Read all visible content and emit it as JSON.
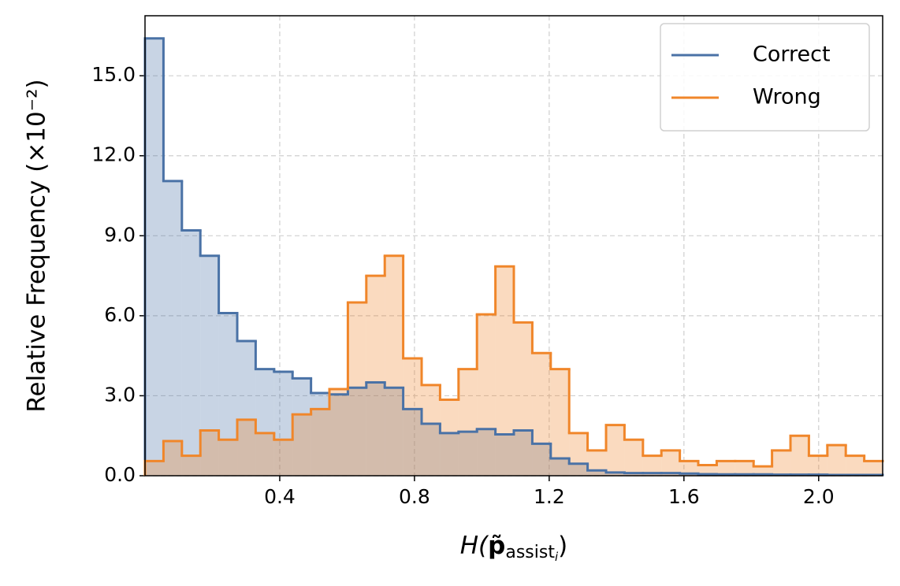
{
  "chart_data": {
    "type": "histogram",
    "histtype": "step-filled",
    "y_label": "Relative Frequency (×10⁻²)",
    "x_label": [
      "H(",
      "p̃",
      "assist",
      "i",
      ")"
    ],
    "bins": [
      0,
      0.0548,
      0.1095,
      0.1643,
      0.219,
      0.2738,
      0.3285,
      0.3833,
      0.438,
      0.4928,
      0.5475,
      0.6023,
      0.657,
      0.7118,
      0.7665,
      0.8213,
      0.876,
      0.9308,
      0.9855,
      1.0403,
      1.095,
      1.1498,
      1.2045,
      1.2593,
      1.314,
      1.3688,
      1.4235,
      1.4783,
      1.533,
      1.5878,
      1.6425,
      1.6973,
      1.752,
      1.8068,
      1.8615,
      1.9163,
      1.971,
      2.0258,
      2.0805,
      2.1353,
      2.19
    ],
    "series": [
      {
        "name": "Correct",
        "color": "#4a72a6",
        "fill_opacity": 0.3,
        "values": [
          16.4,
          11.05,
          9.2,
          8.25,
          6.1,
          5.05,
          4.0,
          3.9,
          3.65,
          3.1,
          3.05,
          3.3,
          3.5,
          3.3,
          2.5,
          1.95,
          1.6,
          1.65,
          1.75,
          1.55,
          1.7,
          1.2,
          0.65,
          0.45,
          0.2,
          0.12,
          0.1,
          0.1,
          0.1,
          0.08,
          0.06,
          0.05,
          0.05,
          0.05,
          0.04,
          0.04,
          0.04,
          0.03,
          0.03,
          0.03
        ]
      },
      {
        "name": "Wrong",
        "color": "#f0862a",
        "fill_opacity": 0.3,
        "values": [
          0.55,
          1.3,
          0.75,
          1.7,
          1.35,
          2.1,
          1.6,
          1.35,
          2.3,
          2.5,
          3.25,
          6.5,
          7.5,
          8.25,
          4.4,
          3.4,
          2.85,
          4.0,
          6.05,
          7.85,
          5.75,
          4.6,
          4.0,
          1.6,
          0.95,
          1.9,
          1.35,
          0.75,
          0.95,
          0.55,
          0.4,
          0.55,
          0.55,
          0.35,
          0.95,
          1.5,
          0.75,
          1.15,
          0.75,
          0.55
        ]
      }
    ],
    "xlim": [
      0,
      2.19
    ],
    "ylim": [
      0,
      17.25
    ],
    "xticks": [
      0.4,
      0.8,
      1.2,
      1.6,
      {
        "value": 2,
        "label": "2.0"
      }
    ],
    "yticks": [
      {
        "value": 0,
        "label": "0.0"
      },
      {
        "value": 3,
        "label": "3.0"
      },
      {
        "value": 6,
        "label": "6.0"
      },
      {
        "value": 9,
        "label": "9.0"
      },
      {
        "value": 12,
        "label": "12.0"
      },
      {
        "value": 15,
        "label": "15.0"
      }
    ],
    "grid": true,
    "legend": "upper right"
  }
}
